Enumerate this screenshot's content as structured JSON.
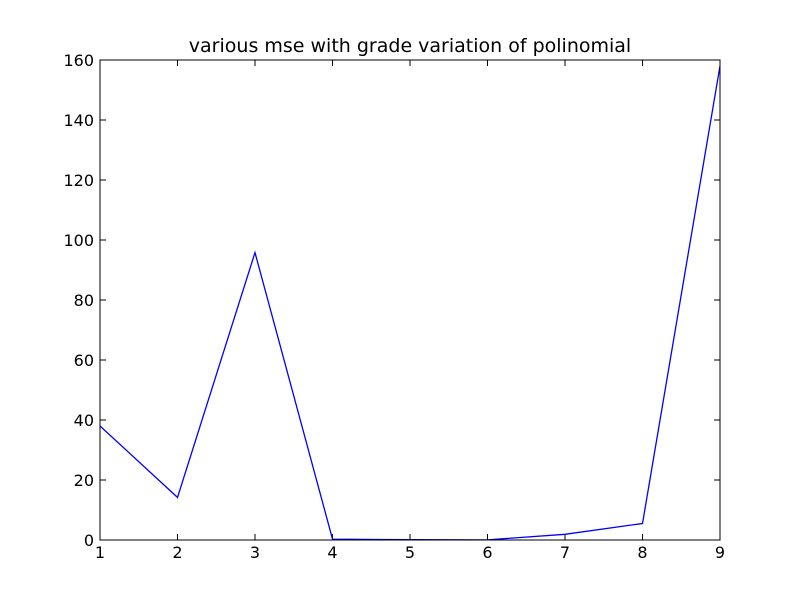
{
  "chart_data": {
    "type": "line",
    "title": "various mse with grade variation of polinomial",
    "xlabel": "",
    "ylabel": "",
    "xlim": [
      1,
      9
    ],
    "ylim": [
      0,
      160
    ],
    "x_ticks": [
      "1",
      "2",
      "3",
      "4",
      "5",
      "6",
      "7",
      "8",
      "9"
    ],
    "y_ticks": [
      "0",
      "20",
      "40",
      "60",
      "80",
      "100",
      "120",
      "140",
      "160"
    ],
    "grid": false,
    "legend": "none",
    "series": [
      {
        "color": "#0000ff",
        "x": [
          1,
          2,
          3,
          4,
          5,
          6,
          7,
          8,
          9
        ],
        "y": [
          38,
          14.2,
          95.8,
          0.3,
          0.1,
          0.05,
          1.9,
          5.5,
          158
        ]
      }
    ]
  }
}
